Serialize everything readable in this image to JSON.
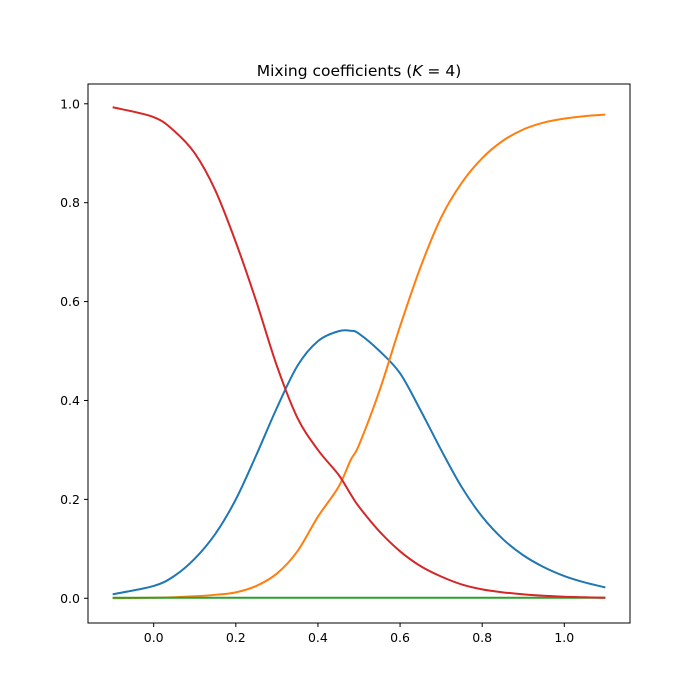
{
  "chart_data": {
    "type": "line",
    "title_prefix": "Mixing coefficients (",
    "title_var": "K",
    "title_suffix": " = 4)",
    "xlabel": "",
    "ylabel": "",
    "xlim": [
      -0.16,
      1.16
    ],
    "ylim": [
      -0.05,
      1.04
    ],
    "xticks": [
      0.0,
      0.2,
      0.4,
      0.6,
      0.8,
      1.0
    ],
    "xtick_labels": [
      "0.0",
      "0.2",
      "0.4",
      "0.6",
      "0.8",
      "1.0"
    ],
    "yticks": [
      0.0,
      0.2,
      0.4,
      0.6,
      0.8,
      1.0
    ],
    "ytick_labels": [
      "0.0",
      "0.2",
      "0.4",
      "0.6",
      "0.8",
      "1.0"
    ],
    "grid": false,
    "legend": "none",
    "x": [
      -0.1,
      0.0,
      0.05,
      0.1,
      0.15,
      0.2,
      0.25,
      0.3,
      0.35,
      0.4,
      0.45,
      0.48,
      0.5,
      0.55,
      0.6,
      0.65,
      0.7,
      0.75,
      0.8,
      0.85,
      0.9,
      0.95,
      1.0,
      1.05,
      1.1
    ],
    "series": [
      {
        "color": "#1f77b4",
        "values": [
          0.008,
          0.025,
          0.045,
          0.08,
          0.13,
          0.2,
          0.29,
          0.385,
          0.47,
          0.52,
          0.54,
          0.541,
          0.535,
          0.5,
          0.455,
          0.38,
          0.3,
          0.225,
          0.165,
          0.12,
          0.087,
          0.063,
          0.045,
          0.032,
          0.022
        ]
      },
      {
        "color": "#ff7f0e",
        "values": [
          0.0,
          0.001,
          0.002,
          0.004,
          0.007,
          0.012,
          0.025,
          0.05,
          0.095,
          0.165,
          0.225,
          0.28,
          0.31,
          0.42,
          0.55,
          0.67,
          0.77,
          0.84,
          0.89,
          0.925,
          0.948,
          0.962,
          0.97,
          0.975,
          0.978
        ]
      },
      {
        "color": "#2ca02c",
        "values": [
          0.001,
          0.001,
          0.001,
          0.001,
          0.001,
          0.001,
          0.001,
          0.001,
          0.001,
          0.001,
          0.001,
          0.001,
          0.001,
          0.001,
          0.001,
          0.001,
          0.001,
          0.001,
          0.001,
          0.001,
          0.001,
          0.001,
          0.001,
          0.001,
          0.001
        ]
      },
      {
        "color": "#d62728",
        "values": [
          0.993,
          0.973,
          0.945,
          0.9,
          0.825,
          0.72,
          0.6,
          0.47,
          0.365,
          0.3,
          0.25,
          0.21,
          0.185,
          0.135,
          0.095,
          0.065,
          0.044,
          0.028,
          0.018,
          0.012,
          0.008,
          0.005,
          0.003,
          0.002,
          0.001
        ]
      }
    ]
  }
}
